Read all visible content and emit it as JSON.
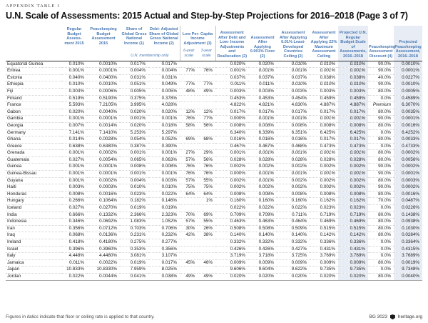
{
  "header": {
    "kicker": "APPENDIX TABLE 1",
    "title": "U.N. Scale of Assessments: 2015 Actual and Step-by-Step Projections for 2016–2018 (Page 3 of 7)"
  },
  "colors": {
    "header_blue": "#4878b4",
    "highlight": "#e8edf5"
  },
  "table": {
    "columns": [
      "Regular Budget Assess- ment 2015",
      "Peacekeeping Budget Assessment 2015",
      "Share of Global Gross National Income (1)",
      "Debt- Adjusted Share of Global Gross National Income (2)",
      "Low Per- Capita Income Adjustment (3)",
      "Assessment After Debt and Low- Income Adjustments and Reallocation (2)",
      "Assessment After Applying 0.001% Floor (2)",
      "Assessment After Applying 0.01% Least- Developed Countries Ceiling (2)",
      "Assessment After Applying 22% Maximum Assessment Ceiling",
      "Projected U.N. Regular Budget Scale of Assessments, 2016–2018",
      "Peacekeeping Assessment Discount (4)",
      "Projected Peacekeeping Assessment, 2016–2018"
    ],
    "membership_note": "U.N. membership only",
    "subcolumns": [
      "6-year scale",
      "3-year scale"
    ],
    "rows": [
      {
        "name": "Equatorial Guinea",
        "values": [
          "0.010%",
          "0.0010%",
          "0.017%",
          "0.017%",
          "",
          "",
          "0.020%",
          "0.020%",
          "0.010%",
          "0.010%",
          "0.010%",
          "90.0%",
          "0.0010%"
        ],
        "italics": [
          8,
          9,
          10
        ]
      },
      {
        "name": "Eritrea",
        "values": [
          "0.001%",
          "0.0001%",
          "0.004%",
          "0.004%",
          "77%",
          "76%",
          "0.001%",
          "0.001%",
          "0.001%",
          "0.001%",
          "0.001%",
          "90.0%",
          "0.0001%"
        ],
        "italics": [
          7,
          8,
          9,
          10
        ]
      },
      {
        "name": "Estonia",
        "values": [
          "0.040%",
          "0.0400%",
          "0.031%",
          "0.031%",
          "",
          "",
          "0.037%",
          "0.037%",
          "0.037%",
          "0.038%",
          "0.038%",
          "40.0%",
          "0.0227%"
        ],
        "italics": []
      },
      {
        "name": "Ethiopia",
        "values": [
          "0.010%",
          "0.0010%",
          "0.051%",
          "0.049%",
          "77%",
          "77%",
          "0.011%",
          "0.011%",
          "0.010%",
          "0.010%",
          "0.010%",
          "90.0%",
          "0.0010%"
        ],
        "italics": [
          8,
          9,
          10
        ]
      },
      {
        "name": "Fiji",
        "values": [
          "0.003%",
          "0.0006%",
          "0.005%",
          "0.005%",
          "48%",
          "49%",
          "0.003%",
          "0.003%",
          "0.003%",
          "0.003%",
          "0.003%",
          "80.0%",
          "0.0005%"
        ],
        "italics": []
      },
      {
        "name": "Finland",
        "values": [
          "0.519%",
          "0.5190%",
          "0.375%",
          "0.378%",
          "",
          "",
          "0.453%",
          "0.453%",
          "0.454%",
          "0.459%",
          "0.459%",
          "0.0%",
          "0.4589%"
        ],
        "italics": []
      },
      {
        "name": "France",
        "values": [
          "5.593%",
          "7.2105%",
          "3.995%",
          "4.028%",
          "",
          "",
          "4.822%",
          "4.821%",
          "4.830%",
          "4.887%",
          "4.887%",
          "Premium",
          "6.3070%"
        ],
        "italics": []
      },
      {
        "name": "Gabon",
        "values": [
          "0.020%",
          "0.0040%",
          "0.020%",
          "0.020%",
          "12%",
          "12%",
          "0.017%",
          "0.017%",
          "0.017%",
          "0.017%",
          "0.017%",
          "80.0%",
          "0.0035%"
        ],
        "italics": []
      },
      {
        "name": "Gambia",
        "values": [
          "0.001%",
          "0.0001%",
          "0.001%",
          "0.001%",
          "76%",
          "77%",
          "0.000%",
          "0.001%",
          "0.001%",
          "0.001%",
          "0.001%",
          "90.0%",
          "0.0001%"
        ],
        "italics": [
          7,
          8,
          9,
          10
        ]
      },
      {
        "name": "Georgia",
        "values": [
          "0.007%",
          "0.0014%",
          "0.020%",
          "0.018%",
          "58%",
          "56%",
          "0.008%",
          "0.008%",
          "0.008%",
          "0.008%",
          "0.008%",
          "80.0%",
          "0.0016%"
        ],
        "italics": []
      },
      {
        "name": "Germany",
        "values": [
          "7.141%",
          "7.1410%",
          "5.253%",
          "5.297%",
          "",
          "",
          "6.340%",
          "6.339%",
          "6.351%",
          "6.425%",
          "6.425%",
          "0.0%",
          "6.4252%"
        ],
        "italics": []
      },
      {
        "name": "Ghana",
        "values": [
          "0.014%",
          "0.0028%",
          "0.054%",
          "0.052%",
          "69%",
          "68%",
          "0.016%",
          "0.016%",
          "0.016%",
          "0.017%",
          "0.017%",
          "80.0%",
          "0.0033%"
        ],
        "italics": []
      },
      {
        "name": "Greece",
        "values": [
          "0.638%",
          "0.6380%",
          "0.387%",
          "0.390%",
          "",
          "",
          "0.467%",
          "0.467%",
          "0.468%",
          "0.473%",
          "0.473%",
          "0.0%",
          "0.4733%"
        ],
        "italics": []
      },
      {
        "name": "Grenada",
        "values": [
          "0.001%",
          "0.0002%",
          "0.001%",
          "0.001%",
          "27%",
          "29%",
          "0.001%",
          "0.001%",
          "0.001%",
          "0.001%",
          "0.001%",
          "80.0%",
          "0.0002%"
        ],
        "italics": [
          7,
          8,
          9,
          10
        ]
      },
      {
        "name": "Guatemala",
        "values": [
          "0.027%",
          "0.0054%",
          "0.065%",
          "0.063%",
          "57%",
          "56%",
          "0.028%",
          "0.028%",
          "0.028%",
          "0.028%",
          "0.028%",
          "80.0%",
          "0.0056%"
        ],
        "italics": []
      },
      {
        "name": "Guinea",
        "values": [
          "0.001%",
          "0.0001%",
          "0.008%",
          "0.008%",
          "76%",
          "76%",
          "0.002%",
          "0.002%",
          "0.002%",
          "0.002%",
          "0.002%",
          "90.0%",
          "0.0002%"
        ],
        "italics": []
      },
      {
        "name": "Guinea-Bissau",
        "values": [
          "0.001%",
          "0.0001%",
          "0.001%",
          "0.001%",
          "76%",
          "76%",
          "0.000%",
          "0.001%",
          "0.001%",
          "0.001%",
          "0.001%",
          "90.0%",
          "0.0001%"
        ],
        "italics": [
          7,
          8,
          9,
          10
        ]
      },
      {
        "name": "Guyana",
        "values": [
          "0.001%",
          "0.0002%",
          "0.004%",
          "0.003%",
          "57%",
          "55%",
          "0.002%",
          "0.001%",
          "0.002%",
          "0.002%",
          "0.002%",
          "80.0%",
          "0.0003%"
        ],
        "italics": [
          7
        ]
      },
      {
        "name": "Haiti",
        "values": [
          "0.003%",
          "0.0003%",
          "0.010%",
          "0.010%",
          "75%",
          "75%",
          "0.002%",
          "0.002%",
          "0.002%",
          "0.002%",
          "0.002%",
          "90.0%",
          "0.0002%"
        ],
        "italics": []
      },
      {
        "name": "Honduras",
        "values": [
          "0.008%",
          "0.0016%",
          "0.023%",
          "0.022%",
          "64%",
          "64%",
          "0.008%",
          "0.008%",
          "0.008%",
          "0.008%",
          "0.008%",
          "80.0%",
          "0.0016%"
        ],
        "italics": []
      },
      {
        "name": "Hungary",
        "values": [
          "0.266%",
          "0.1064%",
          "0.182%",
          "0.146%",
          "",
          "1%",
          "0.160%",
          "0.160%",
          "0.160%",
          "0.162%",
          "0.162%",
          "70.0%",
          "0.0487%"
        ],
        "italics": []
      },
      {
        "name": "Iceland",
        "values": [
          "0.027%",
          "0.0270%",
          "0.019%",
          "0.019%",
          "",
          "",
          "0.022%",
          "0.022%",
          "0.022%",
          "0.023%",
          "0.023%",
          "0.0%",
          "0.0226%"
        ],
        "italics": []
      },
      {
        "name": "India",
        "values": [
          "0.666%",
          "0.1332%",
          "2.366%",
          "2.323%",
          "70%",
          "69%",
          "0.709%",
          "0.709%",
          "0.711%",
          "0.719%",
          "0.719%",
          "80.0%",
          "0.1438%"
        ],
        "italics": []
      },
      {
        "name": "Indonesia",
        "values": [
          "0.346%",
          "0.0692%",
          "1.083%",
          "1.052%",
          "57%",
          "55%",
          "0.463%",
          "0.463%",
          "0.464%",
          "0.469%",
          "0.469%",
          "80.0%",
          "0.0938%"
        ],
        "italics": []
      },
      {
        "name": "Iran",
        "values": [
          "0.356%",
          "0.0712%",
          "0.703%",
          "0.706%",
          "30%",
          "26%",
          "0.508%",
          "0.508%",
          "0.509%",
          "0.515%",
          "0.515%",
          "80.0%",
          "0.1030%"
        ],
        "italics": []
      },
      {
        "name": "Iraq",
        "values": [
          "0.068%",
          "0.0136%",
          "0.231%",
          "0.232%",
          "42%",
          "38%",
          "0.140%",
          "0.140%",
          "0.140%",
          "0.142%",
          "0.142%",
          "80.0%",
          "0.0284%"
        ],
        "italics": []
      },
      {
        "name": "Ireland",
        "values": [
          "0.418%",
          "0.4180%",
          "0.275%",
          "0.277%",
          "",
          "",
          "0.332%",
          "0.332%",
          "0.332%",
          "0.336%",
          "0.336%",
          "0.0%",
          "0.3364%"
        ],
        "italics": []
      },
      {
        "name": "Israel",
        "values": [
          "0.396%",
          "0.3960%",
          "0.353%",
          "0.356%",
          "",
          "",
          "0.426%",
          "0.426%",
          "0.427%",
          "0.431%",
          "0.431%",
          "0.0%",
          "0.4315%"
        ],
        "italics": []
      },
      {
        "name": "Italy",
        "values": [
          "4.448%",
          "4.4480%",
          "3.081%",
          "3.107%",
          "",
          "",
          "3.719%",
          "3.718%",
          "3.725%",
          "3.769%",
          "3.769%",
          "0.0%",
          "3.7689%"
        ],
        "italics": []
      },
      {
        "name": "Jamaica",
        "values": [
          "0.011%",
          "0.0022%",
          "0.019%",
          "0.017%",
          "45%",
          "46%",
          "0.009%",
          "0.009%",
          "0.009%",
          "0.009%",
          "0.009%",
          "80.0%",
          "0.0019%"
        ],
        "italics": []
      },
      {
        "name": "Japan",
        "values": [
          "10.833%",
          "10.8330%",
          "7.959%",
          "8.025%",
          "",
          "",
          "9.606%",
          "9.604%",
          "9.622%",
          "9.735%",
          "9.735%",
          "0.0%",
          "9.7348%"
        ],
        "italics": []
      },
      {
        "name": "Jordan",
        "values": [
          "0.022%",
          "0.0044%",
          "0.041%",
          "0.038%",
          "49%",
          "49%",
          "0.020%",
          "0.020%",
          "0.020%",
          "0.020%",
          "0.020%",
          "80.0%",
          "0.0040%"
        ],
        "italics": []
      }
    ]
  },
  "footer": {
    "note_prefix": "Figures in ",
    "note_italic": "italics",
    "note_suffix": " indicate that floor or ceiling rate is applied to that country.",
    "doc_id": "BG 3023",
    "site": "heritage.org"
  }
}
